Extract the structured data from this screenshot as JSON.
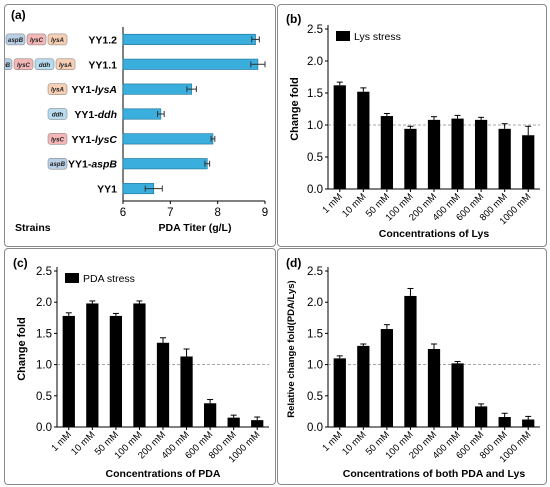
{
  "chart_data": [
    {
      "panel_label": "(a)",
      "type": "bar",
      "orientation": "horizontal",
      "categories": [
        "YY1.2",
        "YY1.1",
        "YY1-lysA",
        "YY1-ddh",
        "YY1-lysC",
        "YY1-aspB",
        "YY1"
      ],
      "values": [
        8.8,
        8.85,
        7.45,
        6.8,
        7.9,
        7.78,
        6.65
      ],
      "errors": [
        0.08,
        0.15,
        0.1,
        0.07,
        0.04,
        0.05,
        0.18
      ],
      "gene_tags": [
        [
          "aspB",
          "lysC",
          "lysA"
        ],
        [
          "aspB",
          "lysC",
          "ddh",
          "lysA"
        ],
        [
          "lysA"
        ],
        [
          "ddh"
        ],
        [
          "lysC"
        ],
        [
          "aspB"
        ],
        []
      ],
      "tag_colors": {
        "aspB": "#b9cfe6",
        "lysC": "#f4b6b6",
        "ddh": "#b7dcef",
        "lysA": "#f6cfb4"
      },
      "bar_color": "#3aaedc",
      "xlabel": "PDA Titer (g/L)",
      "ylabel_left": "Strains",
      "xlim": [
        6,
        9
      ],
      "xticks": [
        "6",
        "7",
        "8",
        "9"
      ]
    },
    {
      "panel_label": "(b)",
      "type": "bar",
      "categories": [
        "1 mM",
        "10 mM",
        "50 mM",
        "100 mM",
        "200 mM",
        "400 mM",
        "600 mM",
        "800 mM",
        "1000 mM"
      ],
      "values": [
        1.62,
        1.52,
        1.14,
        0.94,
        1.08,
        1.1,
        1.08,
        0.94,
        0.84
      ],
      "errors": [
        0.05,
        0.06,
        0.04,
        0.04,
        0.05,
        0.05,
        0.04,
        0.08,
        0.14
      ],
      "legend": "Lys stress",
      "ylabel": "Change fold",
      "xlabel": "Concentrations of Lys",
      "ylim": [
        0,
        2.5
      ],
      "yticks": [
        "0.0",
        "0.5",
        "1.0",
        "1.5",
        "2.0",
        "2.5"
      ],
      "reference_line": 1.0
    },
    {
      "panel_label": "(c)",
      "type": "bar",
      "categories": [
        "1 mM",
        "10 mM",
        "50 mM",
        "100 mM",
        "200 mM",
        "400 mM",
        "600 mM",
        "800 mM",
        "1000 mM"
      ],
      "values": [
        1.78,
        1.98,
        1.78,
        1.98,
        1.35,
        1.13,
        0.38,
        0.15,
        0.11
      ],
      "errors": [
        0.05,
        0.04,
        0.04,
        0.04,
        0.08,
        0.12,
        0.06,
        0.04,
        0.05
      ],
      "legend": "PDA stress",
      "ylabel": "Change fold",
      "xlabel": "Concentrations of PDA",
      "ylim": [
        0,
        2.5
      ],
      "yticks": [
        "0.0",
        "0.5",
        "1.0",
        "1.5",
        "2.0",
        "2.5"
      ],
      "reference_line": 1.0
    },
    {
      "panel_label": "(d)",
      "type": "bar",
      "categories": [
        "1 mM",
        "10 mM",
        "50 mM",
        "100 mM",
        "200 mM",
        "400 mM",
        "600 mM",
        "800 mM",
        "1000 mM"
      ],
      "values": [
        1.1,
        1.3,
        1.57,
        2.1,
        1.25,
        1.02,
        0.33,
        0.16,
        0.12
      ],
      "errors": [
        0.04,
        0.03,
        0.07,
        0.12,
        0.08,
        0.03,
        0.04,
        0.06,
        0.05
      ],
      "ylabel": "Relative change fold(PDA/Lys)",
      "xlabel": "Concentrations of both PDA and Lys",
      "ylim": [
        0,
        2.5
      ],
      "yticks": [
        "0.0",
        "0.5",
        "1.0",
        "1.5",
        "2.0",
        "2.5"
      ],
      "reference_line": 1.0
    }
  ]
}
